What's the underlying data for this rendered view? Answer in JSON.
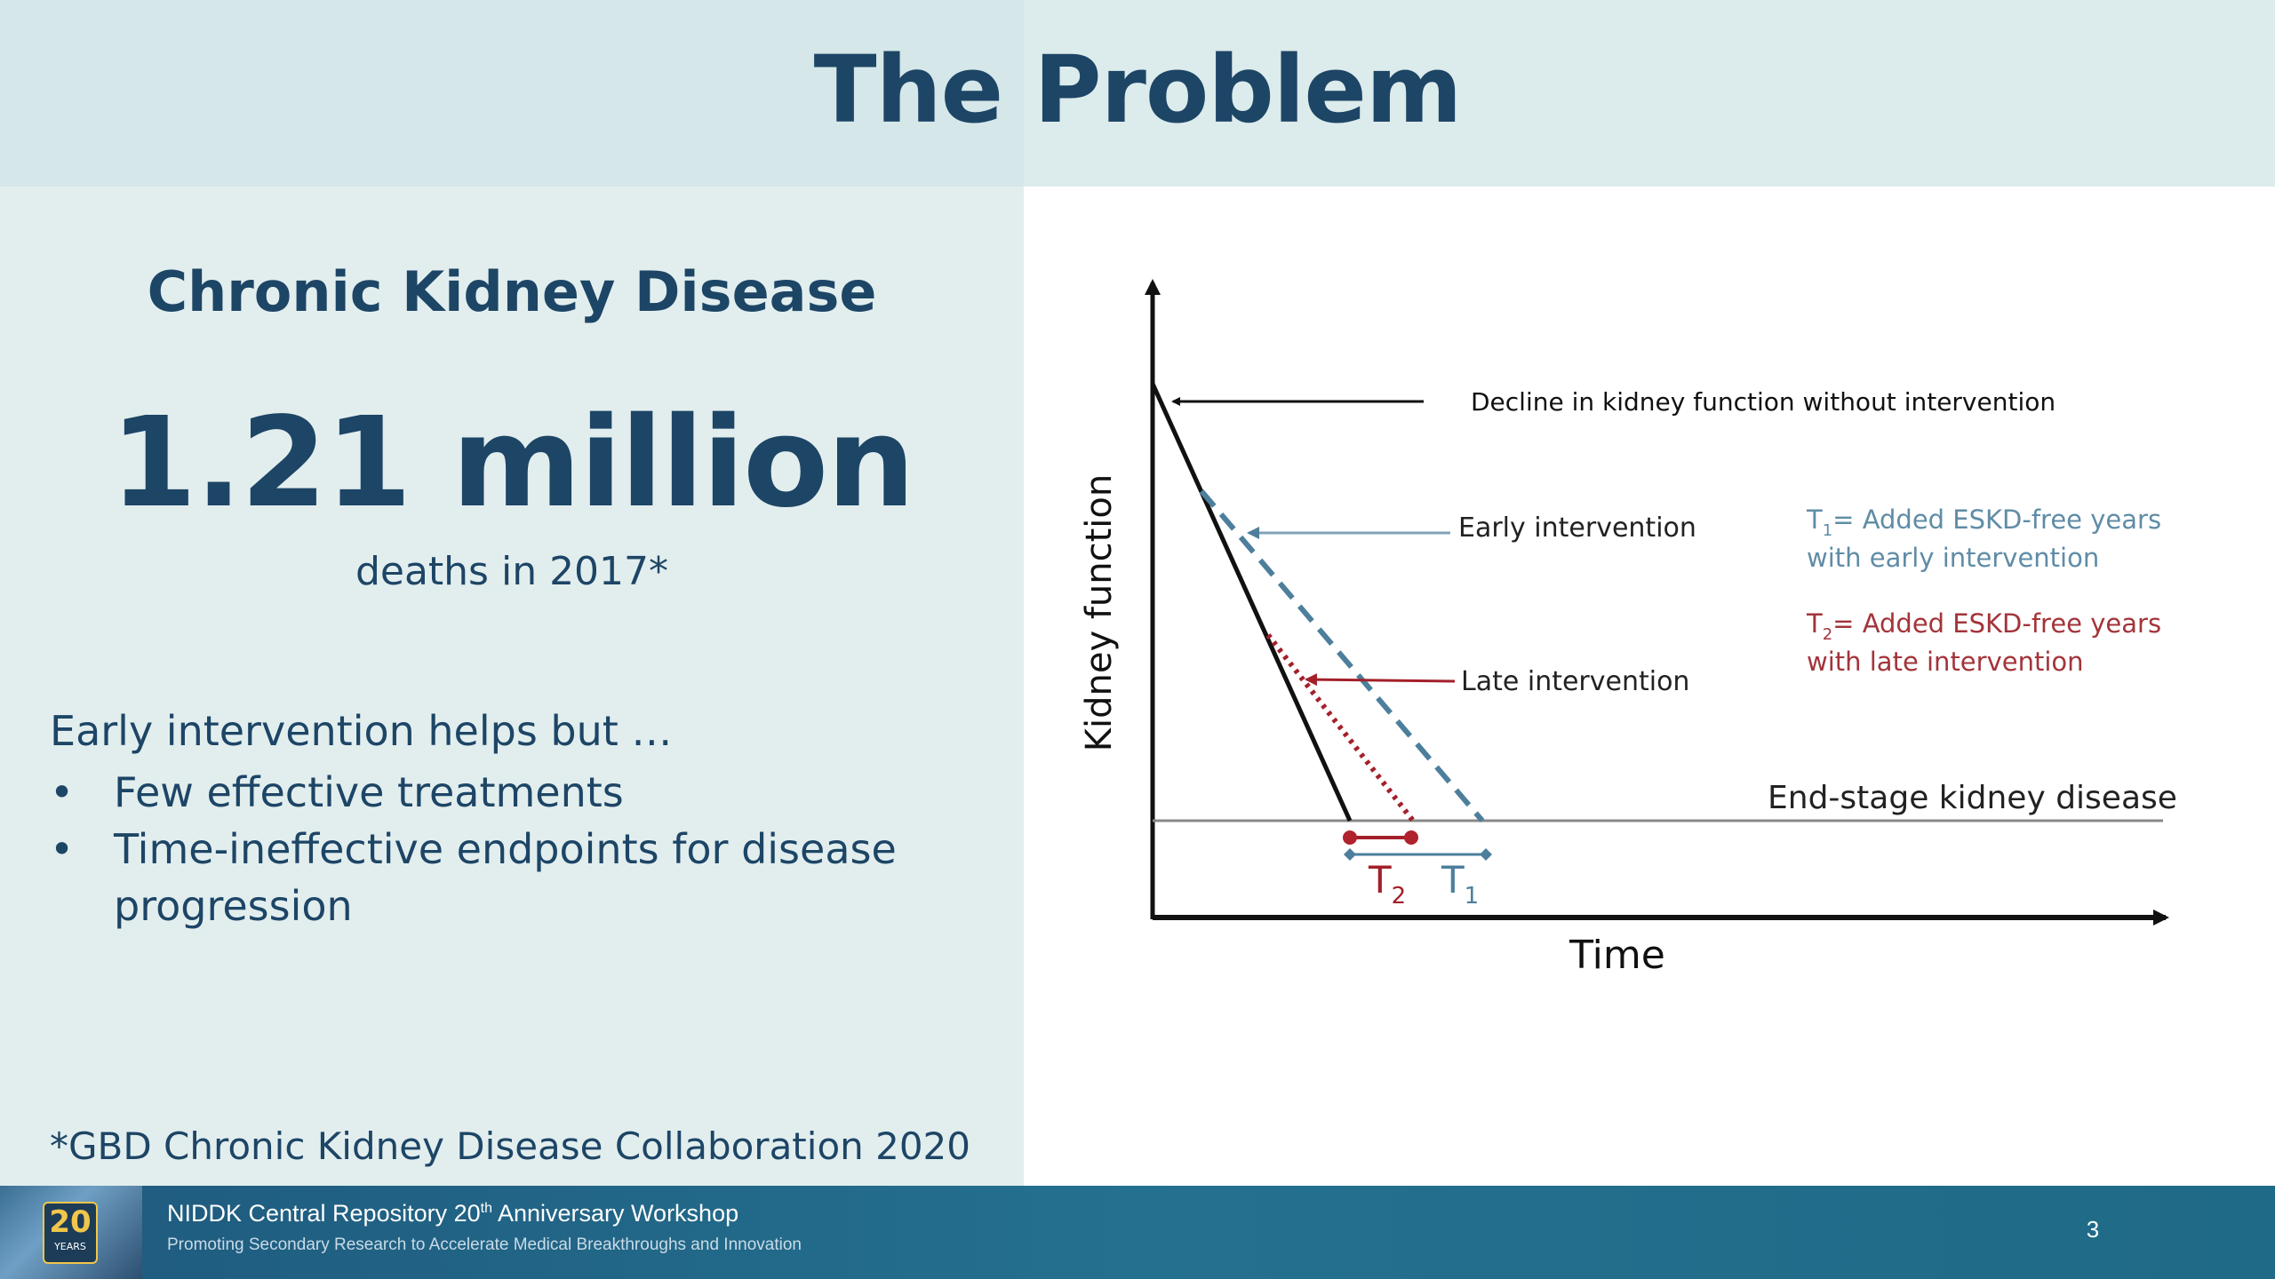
{
  "slide": {
    "title": "The Problem",
    "page_number": "3"
  },
  "left": {
    "subtitle": "Chronic Kidney Disease",
    "stat_value": "1.21 million",
    "stat_caption": "deaths in 2017*",
    "intro": "Early intervention helps but …",
    "bullet_marker": "•",
    "bullets": [
      {
        "text": "Few effective treatments"
      },
      {
        "text": "Time-ineffective endpoints for disease progression"
      }
    ],
    "citation": "*GBD Chronic Kidney Disease Collaboration 2020"
  },
  "diagram": {
    "y_axis_label": "Kidney function",
    "x_axis_label": "Time",
    "decline_label": "Decline in kidney function without intervention",
    "early_label": "Early intervention",
    "late_label": "Late intervention",
    "eskd_label": "End-stage kidney disease",
    "t1_symbol": "T",
    "t1_sub": "1",
    "t1_text": "= Added ESKD-free years",
    "t1_text2": "with early intervention",
    "t2_symbol": "T",
    "t2_sub": "2",
    "t2_text": "= Added ESKD-free years",
    "t2_text2": "with late intervention",
    "colors": {
      "baseline": "#111111",
      "early": "#4d7f9c",
      "late": "#a3202a",
      "eskd_line": "#888888",
      "t1_text": "#5f8ca6",
      "t2_text": "#a3343a"
    }
  },
  "footer": {
    "logo_number": "20",
    "logo_caption": "YEARS",
    "title_prefix": "NIDDK Central Repository 20",
    "title_sup": "th",
    "title_suffix": " Anniversary Workshop",
    "subtitle": "Promoting Secondary Research to Accelerate Medical Breakthroughs and Innovation"
  }
}
